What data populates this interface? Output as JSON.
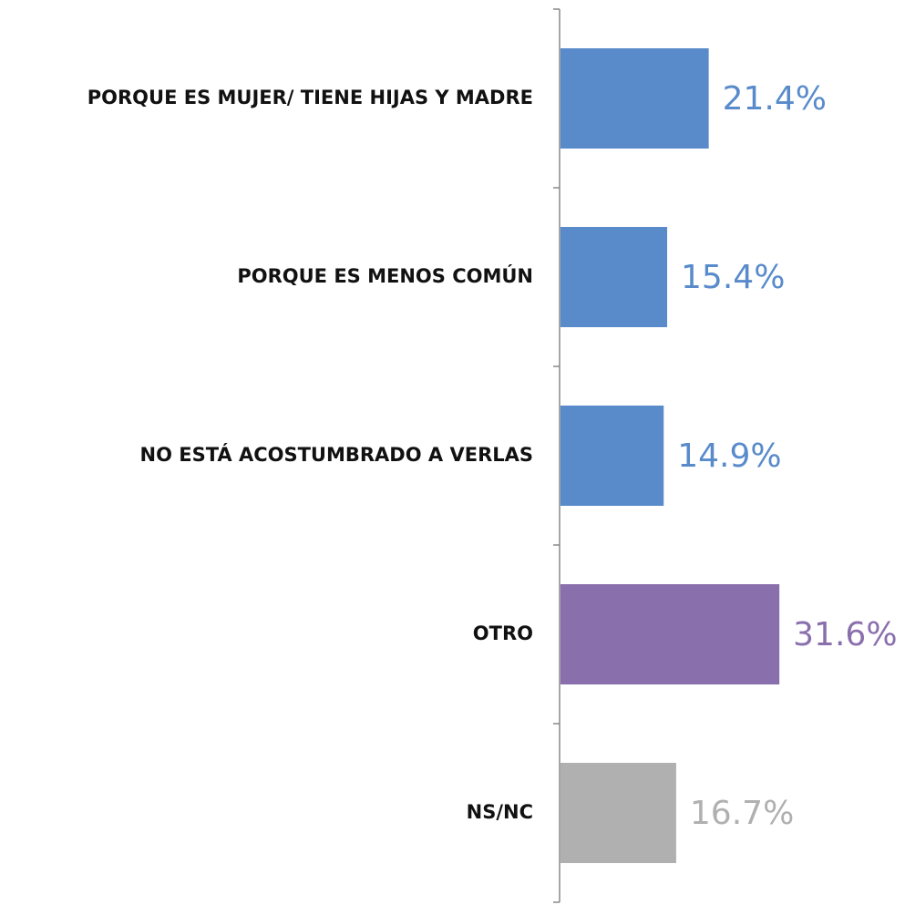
{
  "chart_data": {
    "type": "bar",
    "orientation": "horizontal",
    "categories": [
      "PORQUE ES MUJER/ TIENE HIJAS Y MADRE",
      "PORQUE ES MENOS COMÚN",
      "NO ESTÁ ACOSTUMBRADO A VERLAS",
      "OTRO",
      "NS/NC"
    ],
    "values": [
      21.4,
      15.4,
      14.9,
      31.6,
      16.7
    ],
    "value_labels": [
      "21.4%",
      "15.4%",
      "14.9%",
      "31.6%",
      "16.7%"
    ],
    "colors": [
      "#598bcb",
      "#598bcb",
      "#598bcb",
      "#8a6fad",
      "#b0b0b0"
    ]
  }
}
